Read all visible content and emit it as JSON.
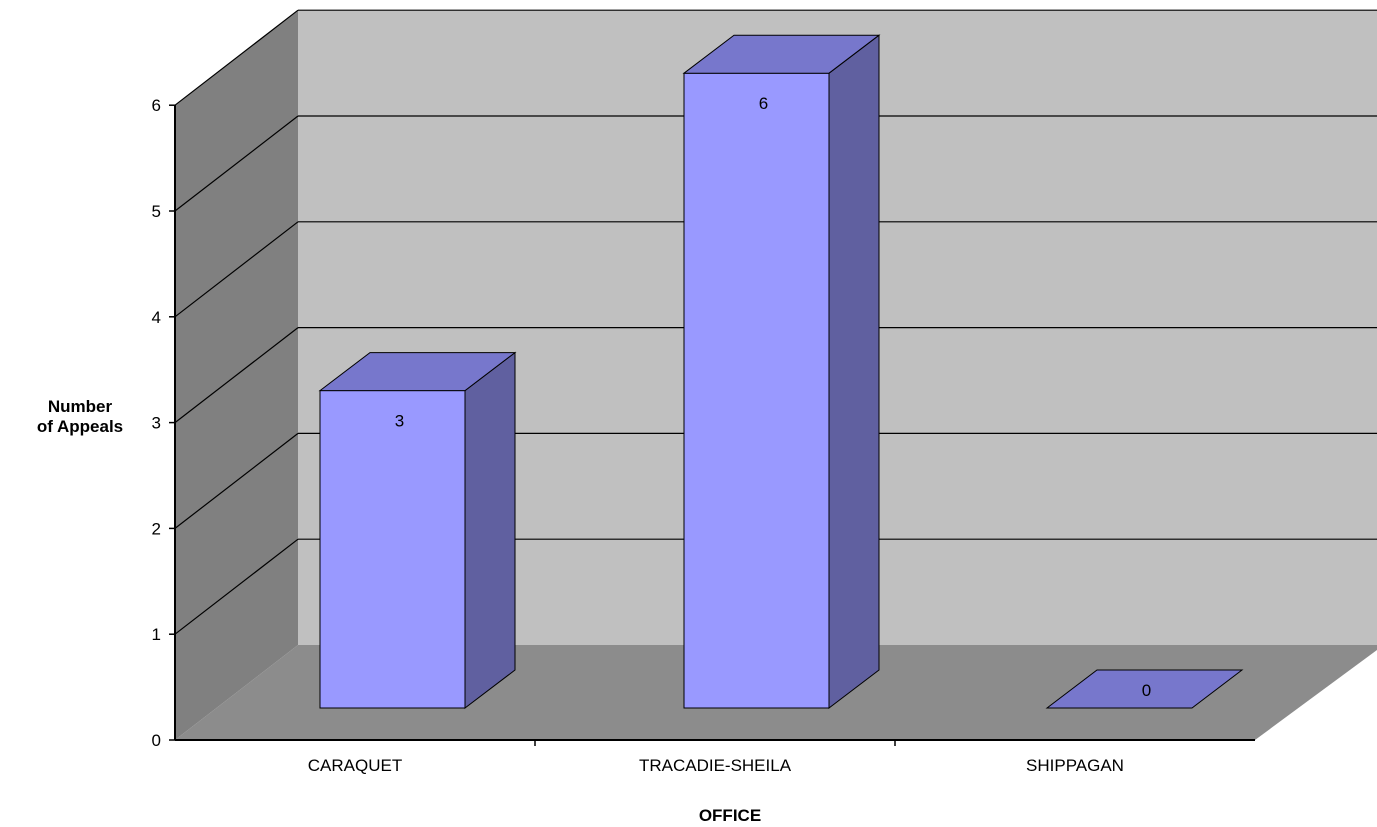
{
  "chart_data": {
    "type": "bar",
    "categories": [
      "CARAQUET",
      "TRACADIE-SHEILA",
      "SHIPPAGAN"
    ],
    "values": [
      3,
      6,
      0
    ],
    "data_labels": [
      "3",
      "6",
      "0"
    ],
    "xlabel": "OFFICE",
    "ylabel_lines": [
      "Number",
      "of Appeals"
    ],
    "ylim": [
      0,
      6
    ],
    "yticks": [
      "0",
      "1",
      "2",
      "3",
      "4",
      "5",
      "6"
    ],
    "grid": true,
    "legend": "none",
    "style": "3d",
    "colors": {
      "bar_front": "#9999FF",
      "bar_side": "#6060A0",
      "bar_top": "#7777CC",
      "back_wall": "#C0C0C0",
      "side_wall": "#808080",
      "floor": "#8C8C8C"
    }
  }
}
